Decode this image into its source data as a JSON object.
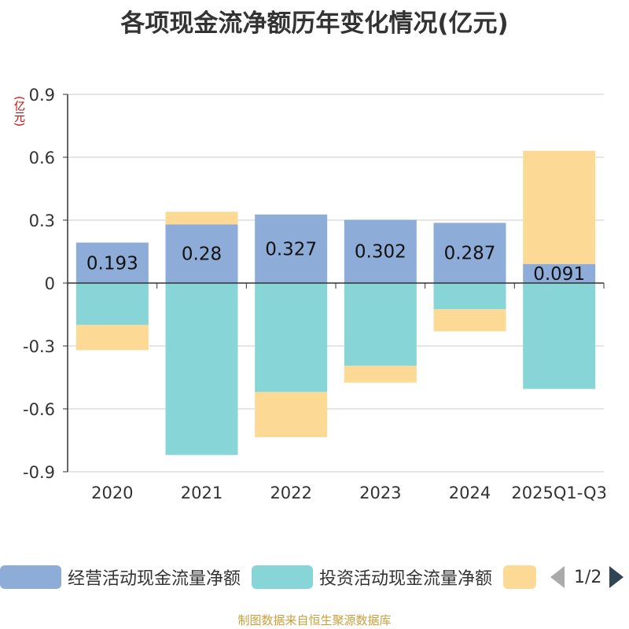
{
  "chart_data": {
    "type": "bar",
    "stacked": true,
    "title": "各项现金流净额历年变化情况(亿元)",
    "ylabel": "(亿元)",
    "xlabel": "",
    "ylim": [
      -0.9,
      0.9
    ],
    "yticks": [
      0.9,
      0.6,
      0.3,
      0,
      -0.3,
      -0.6,
      -0.9
    ],
    "ytick_labels": [
      "0.9",
      "0.6",
      "0.3",
      "0",
      "-0.3",
      "-0.6",
      "-0.9"
    ],
    "grid": true,
    "categories": [
      "2020",
      "2021",
      "2022",
      "2023",
      "2024",
      "2025Q1-Q3"
    ],
    "series": [
      {
        "name": "经营活动现金流量净额",
        "color": "#8eacd8",
        "values": [
          0.193,
          0.28,
          0.327,
          0.302,
          0.287,
          0.091
        ]
      },
      {
        "name": "投资活动现金流量净额",
        "color": "#87d5d6",
        "values": [
          -0.2,
          -0.82,
          -0.52,
          -0.395,
          -0.125,
          -0.505
        ]
      },
      {
        "name": "",
        "color": "#fdd996",
        "values": [
          -0.12,
          0.06,
          -0.215,
          -0.08,
          -0.105,
          0.54
        ]
      }
    ],
    "data_labels": [
      "0.193",
      "0.28",
      "0.327",
      "0.302",
      "0.287",
      "0.091"
    ]
  },
  "legend": {
    "items": [
      {
        "label": "经营活动现金流量净额",
        "color": "#8eacd8"
      },
      {
        "label": "投资活动现金流量净额",
        "color": "#87d5d6"
      },
      {
        "label": "",
        "color": "#fdd996"
      }
    ],
    "page": "1/2"
  },
  "source": "制图数据来自恒生聚源数据库"
}
